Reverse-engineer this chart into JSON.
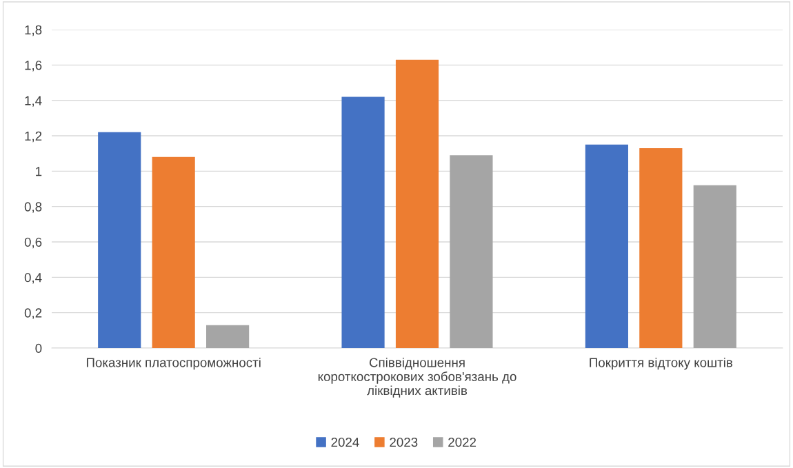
{
  "chart_data": {
    "type": "bar",
    "categories": [
      "Показник платоспроможності",
      "Співвідношення\nкороткострокових зобов'язань до\nліквідних активів",
      "Покриття відтоку коштів"
    ],
    "series": [
      {
        "name": "2024",
        "color": "#4472c4",
        "values": [
          1.22,
          1.42,
          1.15
        ]
      },
      {
        "name": "2023",
        "color": "#ed7d31",
        "values": [
          1.08,
          1.63,
          1.13
        ]
      },
      {
        "name": "2022",
        "color": "#a5a5a5",
        "values": [
          0.13,
          1.09,
          0.92
        ]
      }
    ],
    "ylim": [
      0,
      1.8
    ],
    "yticks": [
      0,
      {
        "value": 0.2,
        "label": "0,2"
      },
      {
        "value": 0.4,
        "label": "0,4"
      },
      {
        "value": 0.6,
        "label": "0,6"
      },
      {
        "value": 0.8,
        "label": "0,8"
      },
      1,
      {
        "value": 1.2,
        "label": "1,2"
      },
      {
        "value": 1.4,
        "label": "1,4"
      },
      {
        "value": 1.6,
        "label": "1,6"
      },
      {
        "value": 1.8,
        "label": "1,8"
      }
    ],
    "grid": "y",
    "legend": "bottom"
  }
}
